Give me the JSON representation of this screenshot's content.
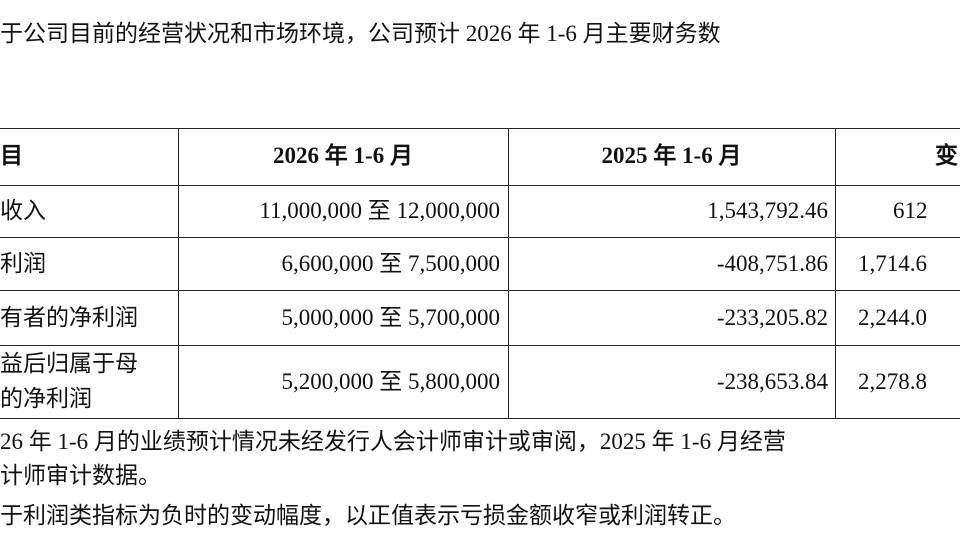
{
  "intro": "于公司目前的经营状况和市场环境，公司预计 2026 年 1-6 月主要财务数",
  "table": {
    "header": [
      "目",
      "2026 年 1-6 月",
      "2025 年 1-6 月",
      "变"
    ],
    "rows": [
      [
        "收入",
        "11,000,000 至 12,000,000",
        "1,543,792.46",
        "612"
      ],
      [
        "利润",
        "6,600,000 至 7,500,000",
        "-408,751.86",
        "1,714.6"
      ],
      [
        "有者的净利润",
        "5,000,000 至 5,700,000",
        "-233,205.82",
        "2,244.0"
      ],
      [
        [
          "益后归属于母",
          "的净利润"
        ],
        "5,200,000 至 5,800,000",
        "-238,653.84",
        "2,278.8"
      ]
    ]
  },
  "notes": [
    "26 年 1-6 月的业绩预计情况未经发行人会计师审计或审阅，2025 年 1-6 月经营",
    "计师审计数据。",
    "于利润类指标为负时的变动幅度，以正值表示亏损金额收窄或利润转正。"
  ]
}
